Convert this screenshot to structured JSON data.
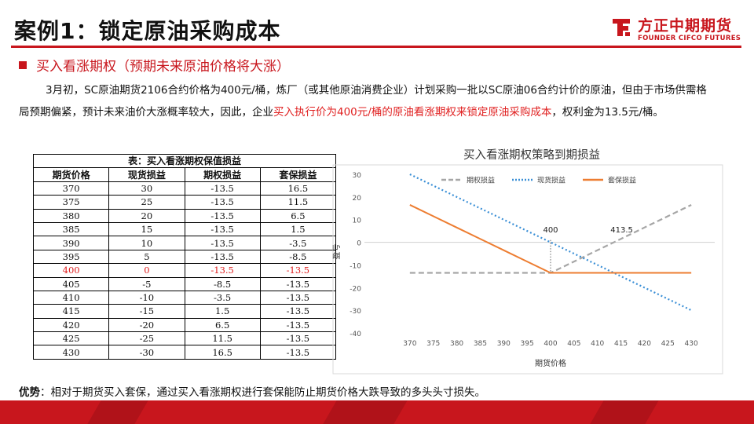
{
  "title": "案例1：锁定原油采购成本",
  "logo": {
    "cn": "方正中期期货",
    "en": "FOUNDER CIFCO FUTURES"
  },
  "subhead": "买入看涨期权（预期未来原油价格将大涨）",
  "paragraph": {
    "part1": "3月初，SC原油期货2106合约价格为400元/桶，炼厂（或其他原油消费企业）计划采购一批以SC原油06合约计价的原油，但由于市场供需格局预期偏紧，预计未来油价大涨概率较大，因此，企业",
    "highlight": "买入执行价为400元/桶的原油看涨期权来锁定原油采购成本",
    "part2": "，权利金为13.5元/桶。"
  },
  "table": {
    "caption": "表：买入看涨期权保值损益",
    "headers": [
      "期货价格",
      "现货损益",
      "期权损益",
      "套保损益"
    ],
    "rows": [
      [
        "370",
        "30",
        "-13.5",
        "16.5"
      ],
      [
        "375",
        "25",
        "-13.5",
        "11.5"
      ],
      [
        "380",
        "20",
        "-13.5",
        "6.5"
      ],
      [
        "385",
        "15",
        "-13.5",
        "1.5"
      ],
      [
        "390",
        "10",
        "-13.5",
        "-3.5"
      ],
      [
        "395",
        "5",
        "-13.5",
        "-8.5"
      ],
      [
        "400",
        "0",
        "-13.5",
        "-13.5"
      ],
      [
        "405",
        "-5",
        "-8.5",
        "-13.5"
      ],
      [
        "410",
        "-10",
        "-3.5",
        "-13.5"
      ],
      [
        "415",
        "-15",
        "1.5",
        "-13.5"
      ],
      [
        "420",
        "-20",
        "6.5",
        "-13.5"
      ],
      [
        "425",
        "-25",
        "11.5",
        "-13.5"
      ],
      [
        "430",
        "-30",
        "16.5",
        "-13.5"
      ]
    ],
    "highlight_row": 6
  },
  "chart_data": {
    "type": "line",
    "title": "买入看涨期权策略到期损益",
    "xlabel": "期货价格",
    "ylabel": "盈亏",
    "x": [
      370,
      375,
      380,
      385,
      390,
      395,
      400,
      405,
      410,
      415,
      420,
      425,
      430
    ],
    "xlim": [
      365,
      435
    ],
    "ylim": [
      -40,
      30
    ],
    "yticks": [
      30,
      20,
      10,
      0,
      -10,
      -20,
      -30,
      -40
    ],
    "legend_position": "top",
    "grid": false,
    "series": [
      {
        "name": "期权损益",
        "color": "#a6a6a6",
        "style": "dashed",
        "values": [
          -13.5,
          -13.5,
          -13.5,
          -13.5,
          -13.5,
          -13.5,
          -13.5,
          -8.5,
          -3.5,
          1.5,
          6.5,
          11.5,
          16.5
        ]
      },
      {
        "name": "现货损益",
        "color": "#3a8fd6",
        "style": "dotted",
        "values": [
          30,
          25,
          20,
          15,
          10,
          5,
          0,
          -5,
          -10,
          -15,
          -20,
          -25,
          -30
        ]
      },
      {
        "name": "套保损益",
        "color": "#ed7d31",
        "style": "solid",
        "values": [
          16.5,
          11.5,
          6.5,
          1.5,
          -3.5,
          -8.5,
          -13.5,
          -13.5,
          -13.5,
          -13.5,
          -13.5,
          -13.5,
          -13.5
        ]
      }
    ],
    "annotations": [
      {
        "text": "400",
        "x": 400,
        "y": 3
      },
      {
        "text": "413.5",
        "x": 413.5,
        "y": 3
      }
    ]
  },
  "advantage": {
    "label": "优势",
    "text": "：相对于期货买入套保，通过买入看涨期权进行套保能防止期货价格大跌导致的多头头寸损失。"
  },
  "colors": {
    "accent": "#c8161d",
    "highlight_text": "#e02020"
  }
}
